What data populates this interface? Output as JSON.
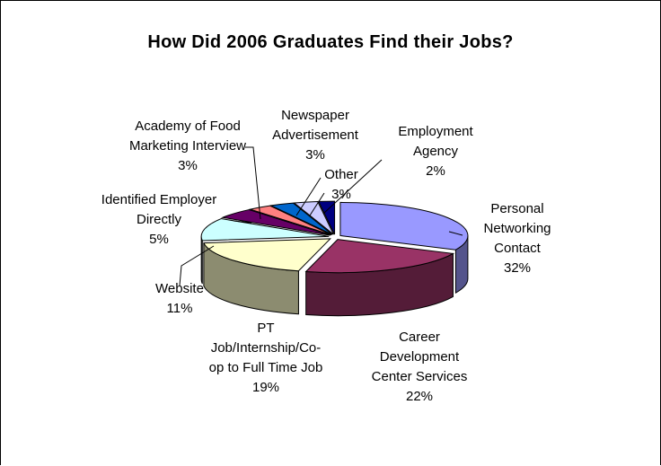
{
  "chart_data": {
    "type": "pie",
    "style": "3d-exploded",
    "title": "How Did 2006 Graduates Find their Jobs?",
    "slices": [
      {
        "label": "Personal Networking Contact",
        "value": 32,
        "value_label": "32%",
        "color": "#9999ff"
      },
      {
        "label": "Career Development Center Services",
        "value": 22,
        "value_label": "22%",
        "color": "#993366"
      },
      {
        "label": "PT Job/Internship/Co-op to Full Time Job",
        "value": 19,
        "value_label": "19%",
        "color": "#ffffcc"
      },
      {
        "label": "Website",
        "value": 11,
        "value_label": "11%",
        "color": "#ccffff"
      },
      {
        "label": "Identified Employer Directly",
        "value": 5,
        "value_label": "5%",
        "color": "#660066"
      },
      {
        "label": "Academy of Food Marketing Interview",
        "value": 3,
        "value_label": "3%",
        "color": "#ff8080"
      },
      {
        "label": "Newspaper Advertisement",
        "value": 3,
        "value_label": "3%",
        "color": "#0066cc"
      },
      {
        "label": "Other",
        "value": 3,
        "value_label": "3%",
        "color": "#ccccff"
      },
      {
        "label": "Employment Agency",
        "value": 2,
        "value_label": "2%",
        "color": "#000080"
      }
    ],
    "label_lines": {
      "personal": [
        "Personal",
        "Networking",
        "Contact"
      ],
      "career": [
        "Career",
        "Development",
        "Center Services"
      ],
      "pt": [
        "PT",
        "Job/Internship/Co-",
        "op to Full Time Job"
      ],
      "website": [
        "Website"
      ],
      "identified": [
        "Identified Employer",
        "Directly"
      ],
      "academy": [
        "Academy of Food",
        "Marketing Interview"
      ],
      "newspaper": [
        "Newspaper",
        "Advertisement"
      ],
      "other": [
        "Other"
      ],
      "agency": [
        "Employment",
        "Agency"
      ]
    }
  }
}
